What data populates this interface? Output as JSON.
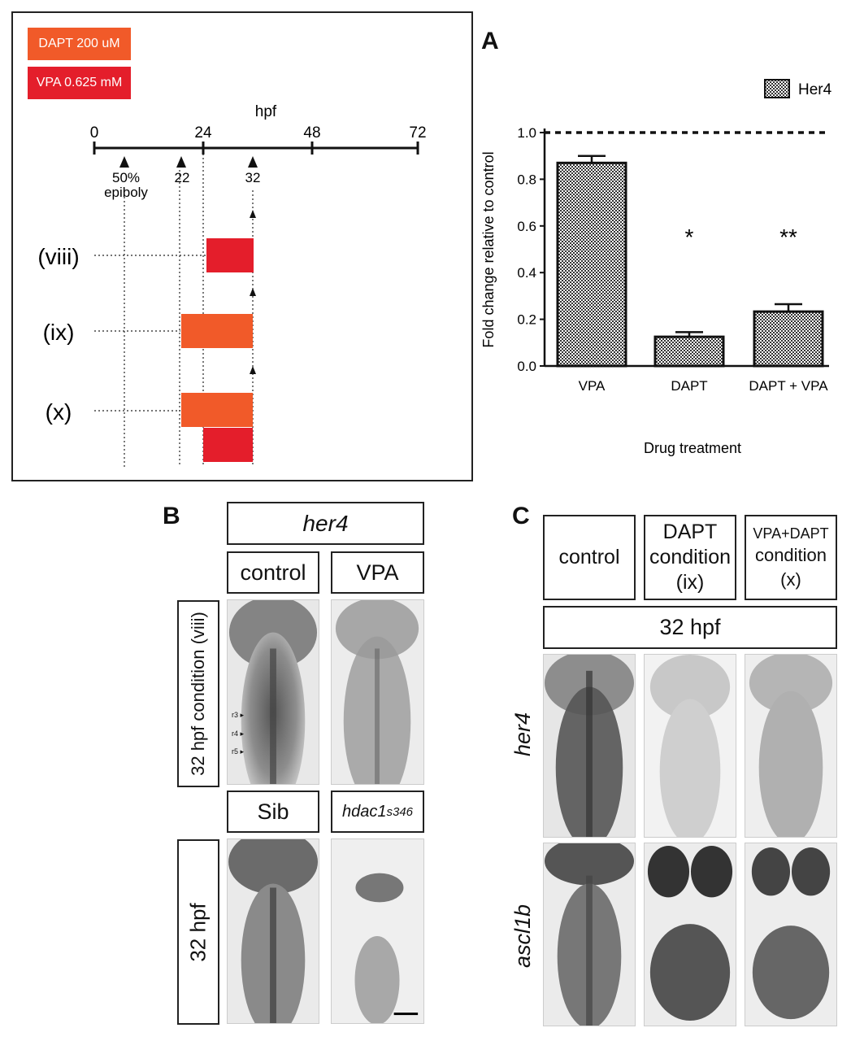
{
  "timeline": {
    "legend": [
      {
        "label": "DAPT 200 uM",
        "color": "#f15a29"
      },
      {
        "label": "VPA 0.625 mM",
        "color": "#e41e2b"
      }
    ],
    "axis_title": "hpf",
    "ticks": [
      "0",
      "24",
      "48",
      "72"
    ],
    "markers": [
      "50%\nepiboly",
      "22",
      "32"
    ],
    "conditions": [
      "(viii)",
      "(ix)",
      "(x)"
    ]
  },
  "panel_a": {
    "letter": "A",
    "chart_data": {
      "type": "bar",
      "categories": [
        "VPA",
        "DAPT",
        "DAPT + VPA"
      ],
      "series": [
        {
          "name": "Her4",
          "values": [
            0.87,
            0.125,
            0.233
          ],
          "errors": [
            0.03,
            0.02,
            0.032
          ]
        }
      ],
      "significance": [
        "",
        "*",
        "**"
      ],
      "reference_line": 1.0,
      "ylabel": "Fold change relative to control",
      "xlabel": "Drug treatment",
      "ylim": [
        0,
        1.0
      ],
      "yticks": [
        "0.0",
        "0.2",
        "0.4",
        "0.6",
        "0.8",
        "1.0"
      ],
      "legend_position": "top-right"
    }
  },
  "panel_b": {
    "letter": "B",
    "gene": "her4",
    "col_labels": [
      "control",
      "VPA"
    ],
    "row1_label": "32 hpf condition (viii)",
    "rhombomeres": [
      "r3",
      "r4",
      "r5"
    ],
    "mutant_labels": {
      "sib": "Sib",
      "mutant_base": "hdac1",
      "mutant_sup": "s346"
    },
    "row2_label": "32 hpf"
  },
  "panel_c": {
    "letter": "C",
    "headers": [
      {
        "lines": [
          "control"
        ]
      },
      {
        "lines": [
          "DAPT",
          "condition",
          "(ix)"
        ]
      },
      {
        "lines": [
          "VPA+DAPT",
          "condition",
          "(x)"
        ]
      }
    ],
    "stage": "32 hpf",
    "genes": [
      "her4",
      "ascl1b"
    ]
  }
}
